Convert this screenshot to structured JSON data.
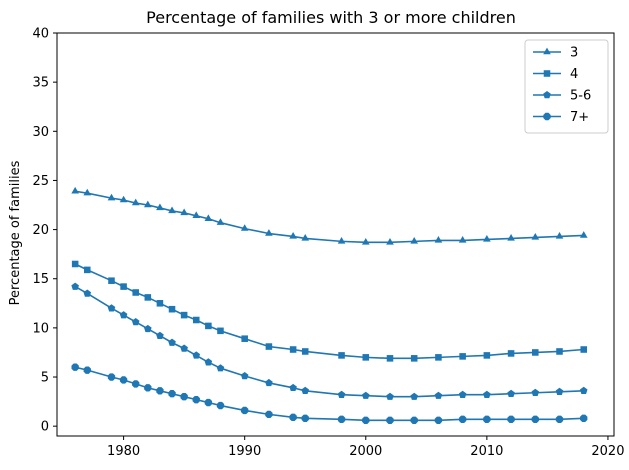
{
  "chart_data": {
    "type": "line",
    "title": "Percentage of families with 3 or more children",
    "xlabel": "",
    "ylabel": "Percentage of families",
    "xlim": [
      1974.5,
      2020.5
    ],
    "ylim": [
      -1,
      40
    ],
    "x_ticks": [
      1980,
      1990,
      2000,
      2010,
      2020
    ],
    "y_ticks": [
      0,
      5,
      10,
      15,
      20,
      25,
      30,
      35,
      40
    ],
    "grid": false,
    "legend_position": "top-right",
    "color": "#1f77b4",
    "series": [
      {
        "name": "3",
        "marker": "triangle",
        "x": [
          1976,
          1977,
          1979,
          1980,
          1981,
          1982,
          1983,
          1984,
          1985,
          1986,
          1987,
          1988,
          1990,
          1992,
          1994,
          1995,
          1998,
          2000,
          2002,
          2004,
          2006,
          2008,
          2010,
          2012,
          2014,
          2016,
          2018
        ],
        "values": [
          23.9,
          23.7,
          23.2,
          23.0,
          22.7,
          22.5,
          22.2,
          21.9,
          21.7,
          21.4,
          21.1,
          20.7,
          20.1,
          19.6,
          19.3,
          19.1,
          18.8,
          18.7,
          18.7,
          18.8,
          18.9,
          18.9,
          19.0,
          19.1,
          19.2,
          19.3,
          19.4
        ]
      },
      {
        "name": "4",
        "marker": "square",
        "x": [
          1976,
          1977,
          1979,
          1980,
          1981,
          1982,
          1983,
          1984,
          1985,
          1986,
          1987,
          1988,
          1990,
          1992,
          1994,
          1995,
          1998,
          2000,
          2002,
          2004,
          2006,
          2008,
          2010,
          2012,
          2014,
          2016,
          2018
        ],
        "values": [
          16.5,
          15.9,
          14.8,
          14.2,
          13.6,
          13.1,
          12.5,
          11.9,
          11.3,
          10.8,
          10.2,
          9.7,
          8.9,
          8.1,
          7.8,
          7.6,
          7.2,
          7.0,
          6.9,
          6.9,
          7.0,
          7.1,
          7.2,
          7.4,
          7.5,
          7.6,
          7.8
        ]
      },
      {
        "name": "5-6",
        "marker": "pentagon",
        "x": [
          1976,
          1977,
          1979,
          1980,
          1981,
          1982,
          1983,
          1984,
          1985,
          1986,
          1987,
          1988,
          1990,
          1992,
          1994,
          1995,
          1998,
          2000,
          2002,
          2004,
          2006,
          2008,
          2010,
          2012,
          2014,
          2016,
          2018
        ],
        "values": [
          14.2,
          13.5,
          12.0,
          11.3,
          10.6,
          9.9,
          9.2,
          8.5,
          7.9,
          7.2,
          6.5,
          5.9,
          5.1,
          4.4,
          3.9,
          3.6,
          3.2,
          3.1,
          3.0,
          3.0,
          3.1,
          3.2,
          3.2,
          3.3,
          3.4,
          3.5,
          3.6
        ]
      },
      {
        "name": "7+",
        "marker": "octagon",
        "x": [
          1976,
          1977,
          1979,
          1980,
          1981,
          1982,
          1983,
          1984,
          1985,
          1986,
          1987,
          1988,
          1990,
          1992,
          1994,
          1995,
          1998,
          2000,
          2002,
          2004,
          2006,
          2008,
          2010,
          2012,
          2014,
          2016,
          2018
        ],
        "values": [
          6.0,
          5.7,
          5.0,
          4.7,
          4.3,
          3.9,
          3.6,
          3.3,
          3.0,
          2.7,
          2.4,
          2.1,
          1.6,
          1.2,
          0.9,
          0.8,
          0.7,
          0.6,
          0.6,
          0.6,
          0.6,
          0.7,
          0.7,
          0.7,
          0.7,
          0.7,
          0.8
        ]
      }
    ]
  }
}
